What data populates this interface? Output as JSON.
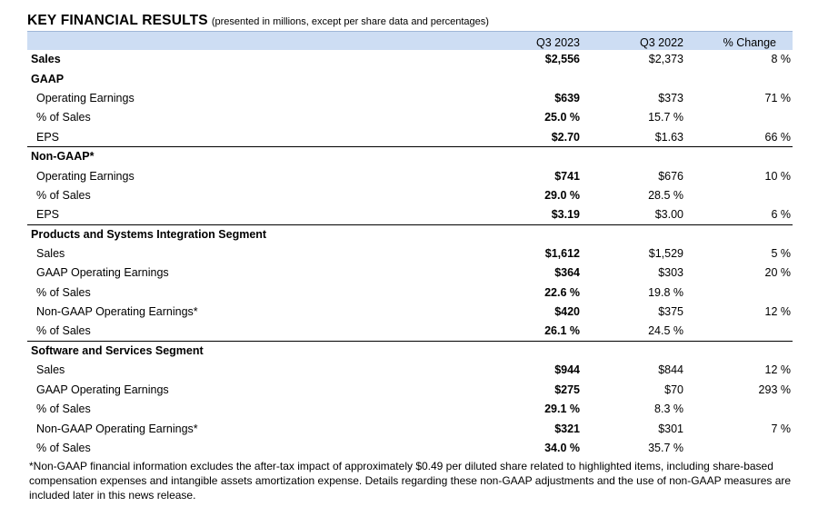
{
  "header": {
    "title": "KEY FINANCIAL RESULTS",
    "subtitle": "(presented in millions, except per share data and percentages)"
  },
  "columns": {
    "current": "Q3 2023",
    "prior": "Q3 2022",
    "change": "% Change"
  },
  "rows": [
    {
      "label": "Sales",
      "current": "$2,556",
      "prior": "$2,373",
      "change": "8 %",
      "type": "section",
      "topline": false
    },
    {
      "label": "GAAP",
      "current": "",
      "prior": "",
      "change": "",
      "type": "section",
      "topline": false
    },
    {
      "label": "Operating Earnings",
      "current": "$639",
      "prior": "$373",
      "change": "71 %",
      "type": "item",
      "topline": false
    },
    {
      "label": "% of Sales",
      "current": "25.0 %",
      "prior": "15.7 %",
      "change": "",
      "type": "item",
      "topline": false
    },
    {
      "label": "EPS",
      "current": "$2.70",
      "prior": "$1.63",
      "change": "66 %",
      "type": "item",
      "topline": false
    },
    {
      "label": "Non-GAAP*",
      "current": "",
      "prior": "",
      "change": "",
      "type": "section",
      "topline": true
    },
    {
      "label": "Operating Earnings",
      "current": "$741",
      "prior": "$676",
      "change": "10 %",
      "type": "item",
      "topline": false
    },
    {
      "label": "% of Sales",
      "current": "29.0 %",
      "prior": "28.5 %",
      "change": "",
      "type": "item",
      "topline": false
    },
    {
      "label": "EPS",
      "current": "$3.19",
      "prior": "$3.00",
      "change": "6 %",
      "type": "item",
      "topline": false
    },
    {
      "label": "Products and Systems Integration Segment",
      "current": "",
      "prior": "",
      "change": "",
      "type": "section",
      "topline": true
    },
    {
      "label": "Sales",
      "current": "$1,612",
      "prior": "$1,529",
      "change": "5 %",
      "type": "item",
      "topline": false
    },
    {
      "label": "GAAP Operating Earnings",
      "current": "$364",
      "prior": "$303",
      "change": "20 %",
      "type": "item",
      "topline": false
    },
    {
      "label": "% of Sales",
      "current": "22.6 %",
      "prior": "19.8 %",
      "change": "",
      "type": "item",
      "topline": false
    },
    {
      "label": "Non-GAAP Operating Earnings*",
      "current": "$420",
      "prior": "$375",
      "change": "12 %",
      "type": "item",
      "topline": false
    },
    {
      "label": "% of Sales",
      "current": "26.1 %",
      "prior": "24.5 %",
      "change": "",
      "type": "item",
      "topline": false
    },
    {
      "label": "Software and Services Segment",
      "current": "",
      "prior": "",
      "change": "",
      "type": "section",
      "topline": true
    },
    {
      "label": "Sales",
      "current": "$944",
      "prior": "$844",
      "change": "12 %",
      "type": "item",
      "topline": false
    },
    {
      "label": "GAAP Operating Earnings",
      "current": "$275",
      "prior": "$70",
      "change": "293 %",
      "type": "item",
      "topline": false
    },
    {
      "label": "% of Sales",
      "current": "29.1 %",
      "prior": "8.3 %",
      "change": "",
      "type": "item",
      "topline": false
    },
    {
      "label": "Non-GAAP Operating Earnings*",
      "current": "$321",
      "prior": "$301",
      "change": "7 %",
      "type": "item",
      "topline": false
    },
    {
      "label": "% of Sales",
      "current": "34.0 %",
      "prior": "35.7 %",
      "change": "",
      "type": "item",
      "topline": false
    }
  ],
  "footnote": "*Non-GAAP financial information excludes the after-tax impact of approximately $0.49 per diluted share related to highlighted items, including share-based compensation expenses and intangible assets amortization expense. Details regarding these non-GAAP adjustments and the use of non-GAAP measures are included later in this news release."
}
